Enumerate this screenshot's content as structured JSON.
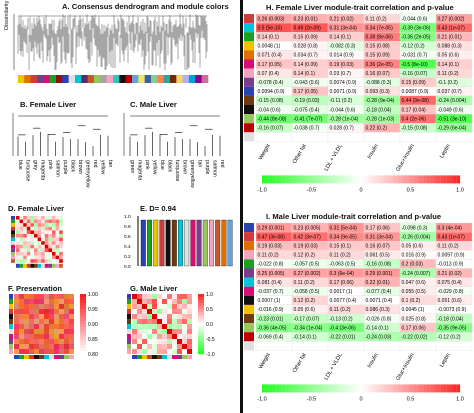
{
  "panel_a": {
    "title": "A. Consensus dendrogram and module colors",
    "ylabel": "Dissimilarity",
    "color_bar": [
      "#f2c200",
      "#e06f00",
      "#d23b3b",
      "#7b3b8e",
      "#d70f74",
      "#1b9f25",
      "#8e0f0f",
      "#2b42b3",
      "#e0e0e0",
      "#00c5d8",
      "#53306c",
      "#c45a2a",
      "#99c85a",
      "#a5a5a5",
      "#f6a3c0",
      "#2ec4c4",
      "#111111",
      "#c00000",
      "#66a3d9",
      "#e8e86a",
      "#3b5fa0",
      "#8fcc8f",
      "#ff7f50",
      "#26a69a",
      "#6e2c00",
      "#f8d36b",
      "#b0b0f0",
      "#00a0e0",
      "#8b008b",
      "#cf6c9b"
    ]
  },
  "panel_b": {
    "title": "B. Female Liver",
    "labels": [
      "blue",
      "turquoise",
      "grey",
      "magenta",
      "pink",
      "salmon",
      "purple",
      "black",
      "brown",
      "greenyellow",
      "red",
      "yellow",
      "tan"
    ]
  },
  "panel_c": {
    "title": "C. Male Liver",
    "labels": [
      "green",
      "magenta",
      "pink",
      "yellow",
      "blue",
      "black",
      "turquoise",
      "brown",
      "greenyellow",
      "tan",
      "purple",
      "salmon",
      "red"
    ]
  },
  "panel_d": {
    "title": "D.     Female Liver"
  },
  "panel_e": {
    "title": "E.     D= 0.94",
    "ticks": [
      "1.0",
      "0.8",
      "0.6",
      "0.4",
      "0.2",
      "0.0"
    ],
    "bar_colors": [
      "#2b42b3",
      "#1b9f25",
      "#f2c200",
      "#d23b3b",
      "#111111",
      "#6e3b12",
      "#00c5d8",
      "#e0e0e0",
      "#d70f74",
      "#7b3b8e",
      "#99c85a",
      "#f6a3c0",
      "#c45a2a",
      "#e06f00",
      "#66a3d9"
    ]
  },
  "panel_f": {
    "title": "F.      Preservation",
    "scale_ticks": [
      "1.00",
      "0.95",
      "0.90",
      "0.85",
      "0.80"
    ]
  },
  "panel_g": {
    "title": "G.      Male Liver",
    "scale_ticks": [
      "1.0",
      "0.5",
      "0.0",
      "-0.5",
      "-1.0"
    ]
  },
  "panel_h": {
    "title": "H. Female Liver module-trait correlation and p-value",
    "colnames": [
      "Weight",
      "Other fat",
      "LDL + VLDL",
      "Insulin",
      "Gluc+Insulin",
      "Leptin"
    ],
    "rowcolors": [
      "#d23b3b",
      "#00c5d8",
      "#1b9f25",
      "#f2c200",
      "#e06f00",
      "#d70f74",
      "#f6a3c0",
      "#7b3b8e",
      "#2b42b3",
      "#6e3b12",
      "#111111",
      "#99c85a",
      "#c00000",
      "#e0e0e0"
    ],
    "cells": [
      [
        "0.26 (0.003)",
        "0.23 (0.01)",
        "0.21 (0.02)",
        "0.11 (0.2)",
        "-0.044 (0.6)",
        "0.27 (0.002)"
      ],
      [
        "0.5 (5e-10)",
        "0.49 (2e-09)",
        "0.31 (3e-04)",
        "0.34 (7e-05)",
        "-0.39 (3e-06)",
        "0.43 (1e-07)"
      ],
      [
        "0.14 (0.1)",
        "0.15 (0.09)",
        "0.14 (0.1)",
        "0.38 (8e-06)",
        "-0.36 (2e-05)",
        "0.21 (0.01)"
      ],
      [
        "0.0048 (1)",
        "0.028 (0.8)",
        "-0.082 (0.3)",
        "0.15 (0.08)",
        "-0.12 (0.2)",
        "0.088 (0.3)"
      ],
      [
        "0.071 (0.4)",
        "0.034 (0.7)",
        "0.014 (0.9)",
        "0.15 (0.09)",
        "-0.031 (0.7)",
        "0.05 (0.6)"
      ],
      [
        "0.17 (0.05)",
        "0.14 (0.09)",
        "0.19 (0.03)",
        "0.36 (2e-05)",
        "-0.5 (8e-10)",
        "0.14 (0.1)"
      ],
      [
        "0.07 (0.4)",
        "0.14 (0.1)",
        "0.03 (0.7)",
        "0.16 (0.07)",
        "-0.16 (0.07)",
        "0.11 (0.2)"
      ],
      [
        "-0.078 (0.4)",
        "-0.043 (0.6)",
        "0.0074 (0.9)",
        "-0.088 (0.3)",
        "0.15 (0.09)",
        "-0.1 (0.2)"
      ],
      [
        "0.0094 (0.9)",
        "0.17 (0.05)",
        "0.0071 (0.9)",
        "0.093 (0.3)",
        "0.0087 (0.9)",
        "0.037 (0.7)"
      ],
      [
        "-0.15 (0.08)",
        "-0.19 (0.03)",
        "-0.11 (0.2)",
        "-0.28 (9e-04)",
        "0.44 (9e-08)",
        "-0.24 (0.004)"
      ],
      [
        "-0.04 (0.6)",
        "-0.075 (0.4)",
        "-0.044 (0.6)",
        "-0.18 (0.04)",
        "0.17 (0.04)",
        "-0.049 (0.6)"
      ],
      [
        "-0.44 (8e-08)",
        "-0.41 (7e-07)",
        "-0.28 (1e-04)",
        "-0.28 (1e-03)",
        "0.4 (2e-06)",
        "-0.51 (3e-10)"
      ],
      [
        "-0.16 (0.07)",
        "-0.038 (0.7)",
        "0.028 (0.7)",
        "0.22 (0.2)",
        "-0.15 (0.08)",
        "-0.29 (6e-04)"
      ],
      [
        "",
        "",
        "",
        "",
        "",
        ""
      ]
    ],
    "colorbar_ticks": [
      "-1.0",
      "-0.5",
      "0",
      "0.5",
      "1.0"
    ]
  },
  "panel_i": {
    "title": "I. Male Liver module-trait correlation and p-value",
    "colnames": [
      "Weight",
      "Other fat",
      "LDL + VLDL",
      "Insulin",
      "Gluc+Insulin",
      "Leptin"
    ],
    "rowcolors": [
      "#2b42b3",
      "#d23b3b",
      "#e06f00",
      "#f6a3c0",
      "#1b9f25",
      "#7b3b8e",
      "#00c5d8",
      "#d70f74",
      "#111111",
      "#f2c200",
      "#6e3b12",
      "#99c85a",
      "#c00000",
      "#e0e0e0"
    ],
    "cells": [
      [
        "0.29 (0.001)",
        "0.23 (0.005)",
        "0.31 (5e-04)",
        "0.17 (0.06)",
        "-0.098 (0.3)",
        "0.3 (4e-04)"
      ],
      [
        "0.47 (3e-08)",
        "0.42 (3e-07)",
        "0.34 (9e-05)",
        "0.31 (3e-04)",
        "-0.26 (0.004)",
        "0.43 (1e-07)"
      ],
      [
        "0.19 (0.03)",
        "0.19 (0.03)",
        "0.15 (0.1)",
        "0.16 (0.07)",
        "0.05 (0.6)",
        "0.11 (0.2)"
      ],
      [
        "0.11 (0.2)",
        "0.12 (0.2)",
        "0.11 (0.2)",
        "0.061 (0.5)",
        "0.016 (0.9)",
        "0.0097 (0.9)"
      ],
      [
        "-0.022 (0.8)",
        "-0.057 (0.5)",
        "-0.063 (0.5)",
        "-0.16 (0.08)",
        "0.2 (0.03)",
        "-0.013 (0.9)"
      ],
      [
        "0.25 (0.005)",
        "0.27 (0.002)",
        "0.3 (6e-04)",
        "0.29 (0.001)",
        "-0.24 (0.007)",
        "0.21 (0.02)"
      ],
      [
        "0.081 (0.4)",
        "0.11 (0.2)",
        "0.17 (0.06)",
        "0.22 (0.01)",
        "0.047 (0.6)",
        "0.075 (0.4)"
      ],
      [
        "-0.037 (0.7)",
        "-0.058 (0.5)",
        "0.0017 (1)",
        "-0.077 (0.4)",
        "0.055 (0.5)",
        "-0.029 (0.8)"
      ],
      [
        "0.0007 (1)",
        "0.12 (0.2)",
        "0.0077 (0.4)",
        "0.0071 (0.4)",
        "0.1 (0.2)",
        "0.051 (0.6)"
      ],
      [
        "-0.016 (0.9)",
        "0.05 (0.6)",
        "0.11 (0.2)",
        "0.086 (0.3)",
        "0.0045 (1)",
        "-0.0073 (0.9)"
      ],
      [
        "-0.23 (0.01)",
        "-0.17 (0.07)",
        "-0.13 (0.2)",
        "-0.026 (0.8)",
        "0.025 (0.8)",
        "-0.18 (0.04)"
      ],
      [
        "-0.36 (4e-05)",
        "-0.34 (1e-04)",
        "-0.4 (3e-06)",
        "-0.14 (0.1)",
        "0.17 (0.06)",
        "-0.35 (9e-05)"
      ],
      [
        "-0.069 (0.4)",
        "-0.14 (0.1)",
        "-0.22 (0.01)",
        "-0.24 (0.03)",
        "-0.22 (0.02)",
        "-0.12 (0.2)"
      ],
      [
        "",
        "",
        "",
        "",
        "",
        ""
      ]
    ],
    "colorbar_ticks": [
      "-1.0",
      "-0.5",
      "0",
      "0.5",
      "1.0"
    ]
  }
}
